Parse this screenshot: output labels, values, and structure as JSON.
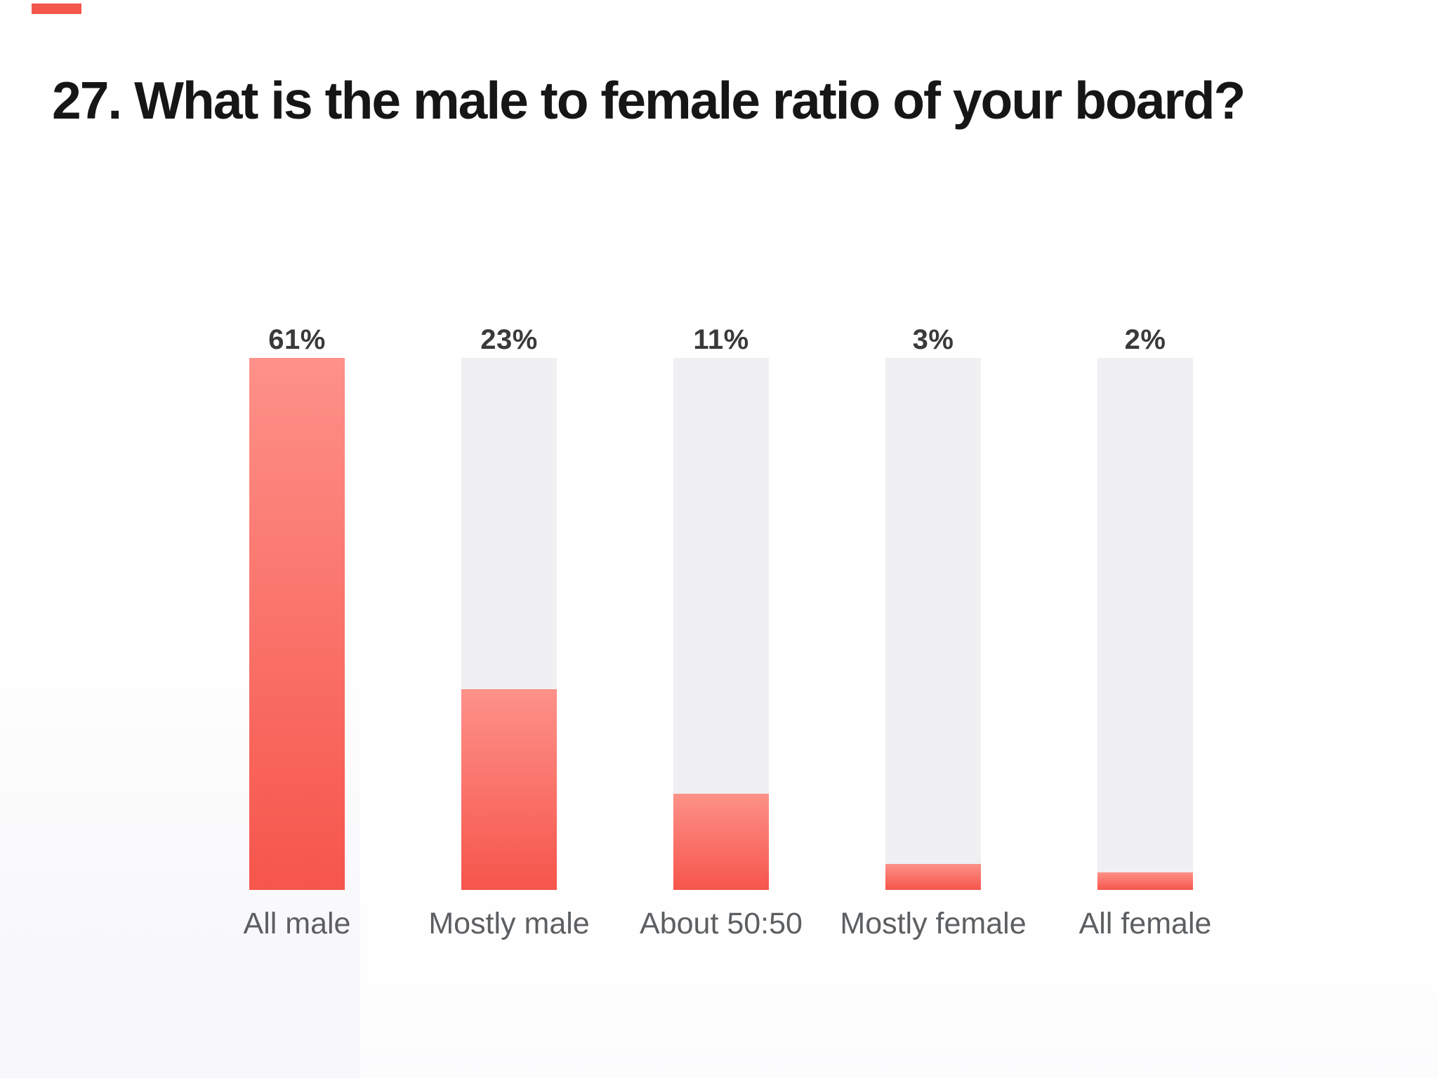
{
  "slide": {
    "title": "27. What is the male to female ratio of your board?"
  },
  "colors": {
    "background": "#FFFFFF",
    "title_text": "#161616",
    "accent_mark": "#F4564C",
    "bar_track": "#F0EFF1",
    "bar_fill_top": "#FD9189",
    "bar_fill_bottom": "#F6554B",
    "value_label": "#3A3A3A",
    "category_label": "#5C5F62"
  },
  "chart_data": {
    "type": "bar",
    "title": "27. What is the male to female ratio of your board?",
    "categories": [
      "All male",
      "Mostly male",
      "About 50:50",
      "Mostly female",
      "All female"
    ],
    "values": [
      61,
      23,
      11,
      3,
      2
    ],
    "value_labels": [
      "61%",
      "23%",
      "11%",
      "3%",
      "2%"
    ],
    "unit": "%",
    "xlabel": "",
    "ylabel": "",
    "ylim": [
      0,
      61
    ],
    "grid": false,
    "legend": false,
    "orientation": "vertical",
    "bar_style": "each bar is a full-height light-gray track; coral gradient fill rises from the bottom proportional to value/max"
  }
}
